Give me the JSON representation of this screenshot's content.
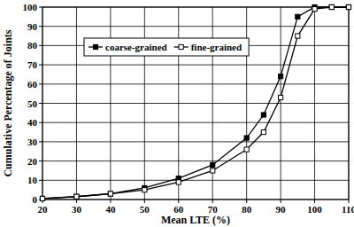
{
  "chart_data": {
    "type": "line",
    "x_label": "Mean LTE (%)",
    "y_label": "Cumulative Percentage of Joints",
    "x": [
      20,
      30,
      40,
      50,
      60,
      70,
      80,
      85,
      90,
      95,
      100,
      105,
      110
    ],
    "series": [
      {
        "name": "coarse-grained",
        "color": "#000000",
        "marker": "square",
        "line_style": "solid",
        "values": [
          0.5,
          1.5,
          3,
          6,
          11,
          18,
          32,
          44,
          64,
          95,
          100,
          100,
          100
        ]
      },
      {
        "name": "fine-grained",
        "color": "#000000",
        "marker": "open-square",
        "line_style": "solid",
        "values": [
          0.5,
          1.5,
          3,
          5,
          9,
          15,
          26,
          35,
          53,
          85,
          99,
          100,
          100
        ]
      }
    ],
    "xlim": [
      20,
      110
    ],
    "xticks": [
      20,
      30,
      40,
      50,
      60,
      70,
      80,
      90,
      100,
      110
    ],
    "ylim": [
      0,
      100
    ],
    "yticks": [
      0,
      10,
      20,
      30,
      40,
      50,
      60,
      70,
      80,
      90,
      100
    ],
    "grid": true,
    "legend": "upper left"
  }
}
